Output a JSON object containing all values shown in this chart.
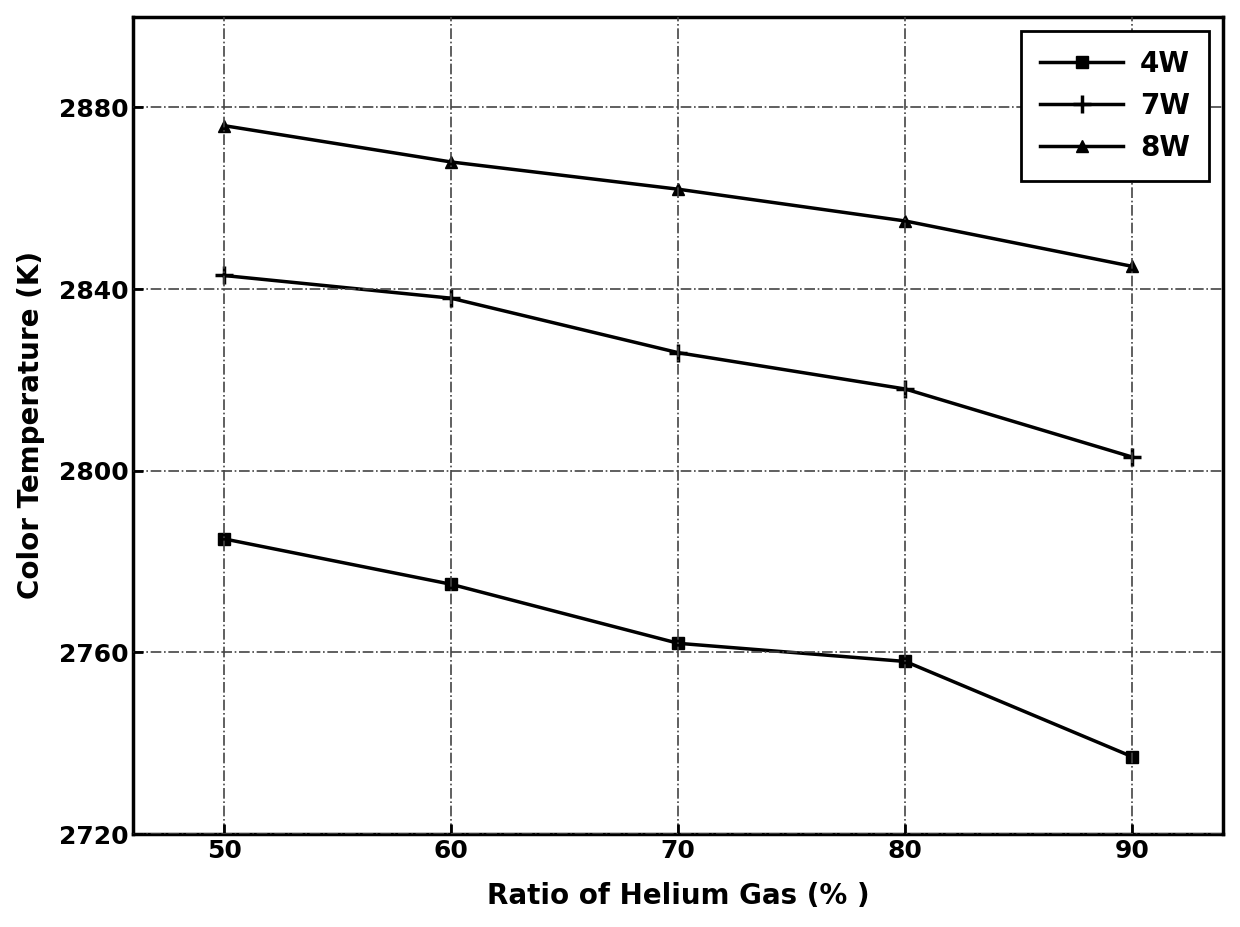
{
  "x": [
    50,
    60,
    70,
    80,
    90
  ],
  "y_4W": [
    2785,
    2775,
    2762,
    2758,
    2737
  ],
  "y_7W": [
    2843,
    2838,
    2826,
    2818,
    2803
  ],
  "y_8W": [
    2876,
    2868,
    2862,
    2855,
    2845
  ],
  "xlabel": "Ratio of Helium Gas (% )",
  "ylabel": "Color Temperature (K)",
  "xlim": [
    46,
    94
  ],
  "ylim": [
    2720,
    2900
  ],
  "yticks": [
    2720,
    2760,
    2800,
    2840,
    2880
  ],
  "xticks": [
    50,
    60,
    70,
    80,
    90
  ],
  "line_color": "#000000",
  "bg_color": "#ffffff",
  "grid_color": "#444444",
  "legend_labels": [
    "4W",
    "7W",
    "8W"
  ],
  "label_fontsize": 20,
  "tick_fontsize": 18,
  "legend_fontsize": 20
}
